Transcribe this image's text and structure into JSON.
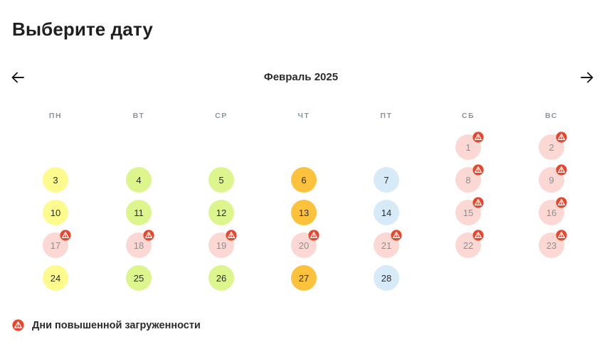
{
  "page": {
    "title": "Выберите дату"
  },
  "calendar": {
    "month_label": "Февраль 2025",
    "prev_icon": "arrow-left-icon",
    "next_icon": "arrow-right-icon",
    "weekdays": [
      "ПН",
      "ВТ",
      "СР",
      "ЧТ",
      "ПТ",
      "СБ",
      "ВС"
    ],
    "first_weekday_index": 5,
    "days": [
      {
        "label": "1",
        "status": "busy"
      },
      {
        "label": "2",
        "status": "busy"
      },
      {
        "label": "3",
        "status": "yellow"
      },
      {
        "label": "4",
        "status": "lime"
      },
      {
        "label": "5",
        "status": "lime"
      },
      {
        "label": "6",
        "status": "orange"
      },
      {
        "label": "7",
        "status": "blue"
      },
      {
        "label": "8",
        "status": "busy"
      },
      {
        "label": "9",
        "status": "busy"
      },
      {
        "label": "10",
        "status": "yellow"
      },
      {
        "label": "11",
        "status": "lime"
      },
      {
        "label": "12",
        "status": "lime"
      },
      {
        "label": "13",
        "status": "orange"
      },
      {
        "label": "14",
        "status": "blue"
      },
      {
        "label": "15",
        "status": "busy"
      },
      {
        "label": "16",
        "status": "busy"
      },
      {
        "label": "17",
        "status": "busy"
      },
      {
        "label": "18",
        "status": "busy"
      },
      {
        "label": "19",
        "status": "busy"
      },
      {
        "label": "20",
        "status": "busy"
      },
      {
        "label": "21",
        "status": "busy"
      },
      {
        "label": "22",
        "status": "busy"
      },
      {
        "label": "23",
        "status": "busy"
      },
      {
        "label": "24",
        "status": "yellow"
      },
      {
        "label": "25",
        "status": "lime"
      },
      {
        "label": "26",
        "status": "lime"
      },
      {
        "label": "27",
        "status": "orange"
      },
      {
        "label": "28",
        "status": "blue"
      }
    ],
    "colors": {
      "yellow": "#fdfb8d",
      "lime": "#dcf58c",
      "orange": "#fcc23c",
      "blue": "#d6ebf7",
      "busy": "#fbd8d3",
      "warning": "#e8472e"
    }
  },
  "legend": {
    "icon": "warning-icon",
    "text": "Дни повышенной загруженности"
  }
}
